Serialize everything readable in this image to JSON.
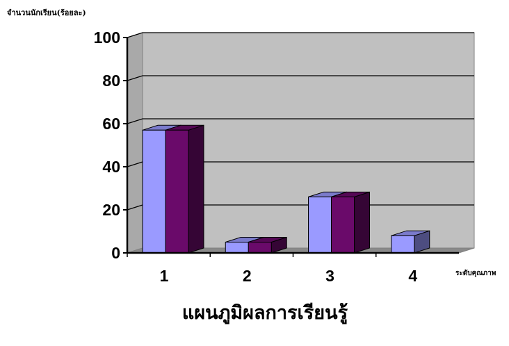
{
  "chart_data": {
    "type": "bar",
    "categories": [
      "1",
      "2",
      "3",
      "4"
    ],
    "series": [
      {
        "values": [
          57,
          5,
          26,
          8
        ],
        "color": "#9a9aff"
      },
      {
        "values": [
          57,
          5,
          26,
          null
        ],
        "color": "#6a0a6a"
      }
    ],
    "ylabel": "จำนวนนักเรียน(ร้อยละ)",
    "xlabel": "ระดับคุณภาพ",
    "title": "แผนภูมิผลการเรียนรู้",
    "ylim": [
      0,
      100
    ],
    "yticks": [
      0,
      20,
      40,
      60,
      80,
      100
    ],
    "grid": true,
    "background": "#c0c0c0"
  }
}
